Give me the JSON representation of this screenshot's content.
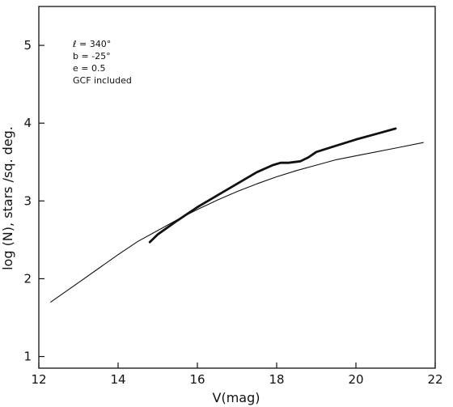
{
  "chart_data": {
    "type": "line",
    "title": "",
    "xlabel": "V(mag)",
    "ylabel": "log (N), stars /sq. deg.",
    "xlim": [
      12,
      22
    ],
    "ylim": [
      0.85,
      5.5
    ],
    "xticks": [
      12,
      14,
      16,
      18,
      20,
      22
    ],
    "yticks": [
      1,
      2,
      3,
      4,
      5
    ],
    "grid": false,
    "legend": "none",
    "annotations": [
      "ℓ = 340°",
      "b = -25°",
      "e = 0.5",
      "GCF included"
    ],
    "series": [
      {
        "name": "",
        "style": "thin",
        "color": "#111111",
        "x": [
          12.3,
          13.0,
          13.5,
          14.0,
          14.5,
          15.0,
          15.5,
          16.0,
          16.5,
          17.0,
          17.5,
          18.0,
          18.5,
          19.0,
          19.5,
          20.0,
          20.5,
          21.0,
          21.7
        ],
        "y": [
          1.7,
          1.95,
          2.13,
          2.31,
          2.48,
          2.62,
          2.76,
          2.89,
          3.01,
          3.12,
          3.22,
          3.31,
          3.39,
          3.46,
          3.53,
          3.58,
          3.63,
          3.68,
          3.75
        ]
      },
      {
        "name": "",
        "style": "thick",
        "color": "#111111",
        "x": [
          14.8,
          15.0,
          15.5,
          16.0,
          16.5,
          17.0,
          17.5,
          17.9,
          18.1,
          18.3,
          18.6,
          18.8,
          19.0,
          19.5,
          20.0,
          20.5,
          21.0
        ],
        "y": [
          2.47,
          2.57,
          2.75,
          2.92,
          3.07,
          3.22,
          3.37,
          3.46,
          3.49,
          3.49,
          3.51,
          3.56,
          3.63,
          3.71,
          3.79,
          3.86,
          3.93
        ]
      }
    ]
  }
}
